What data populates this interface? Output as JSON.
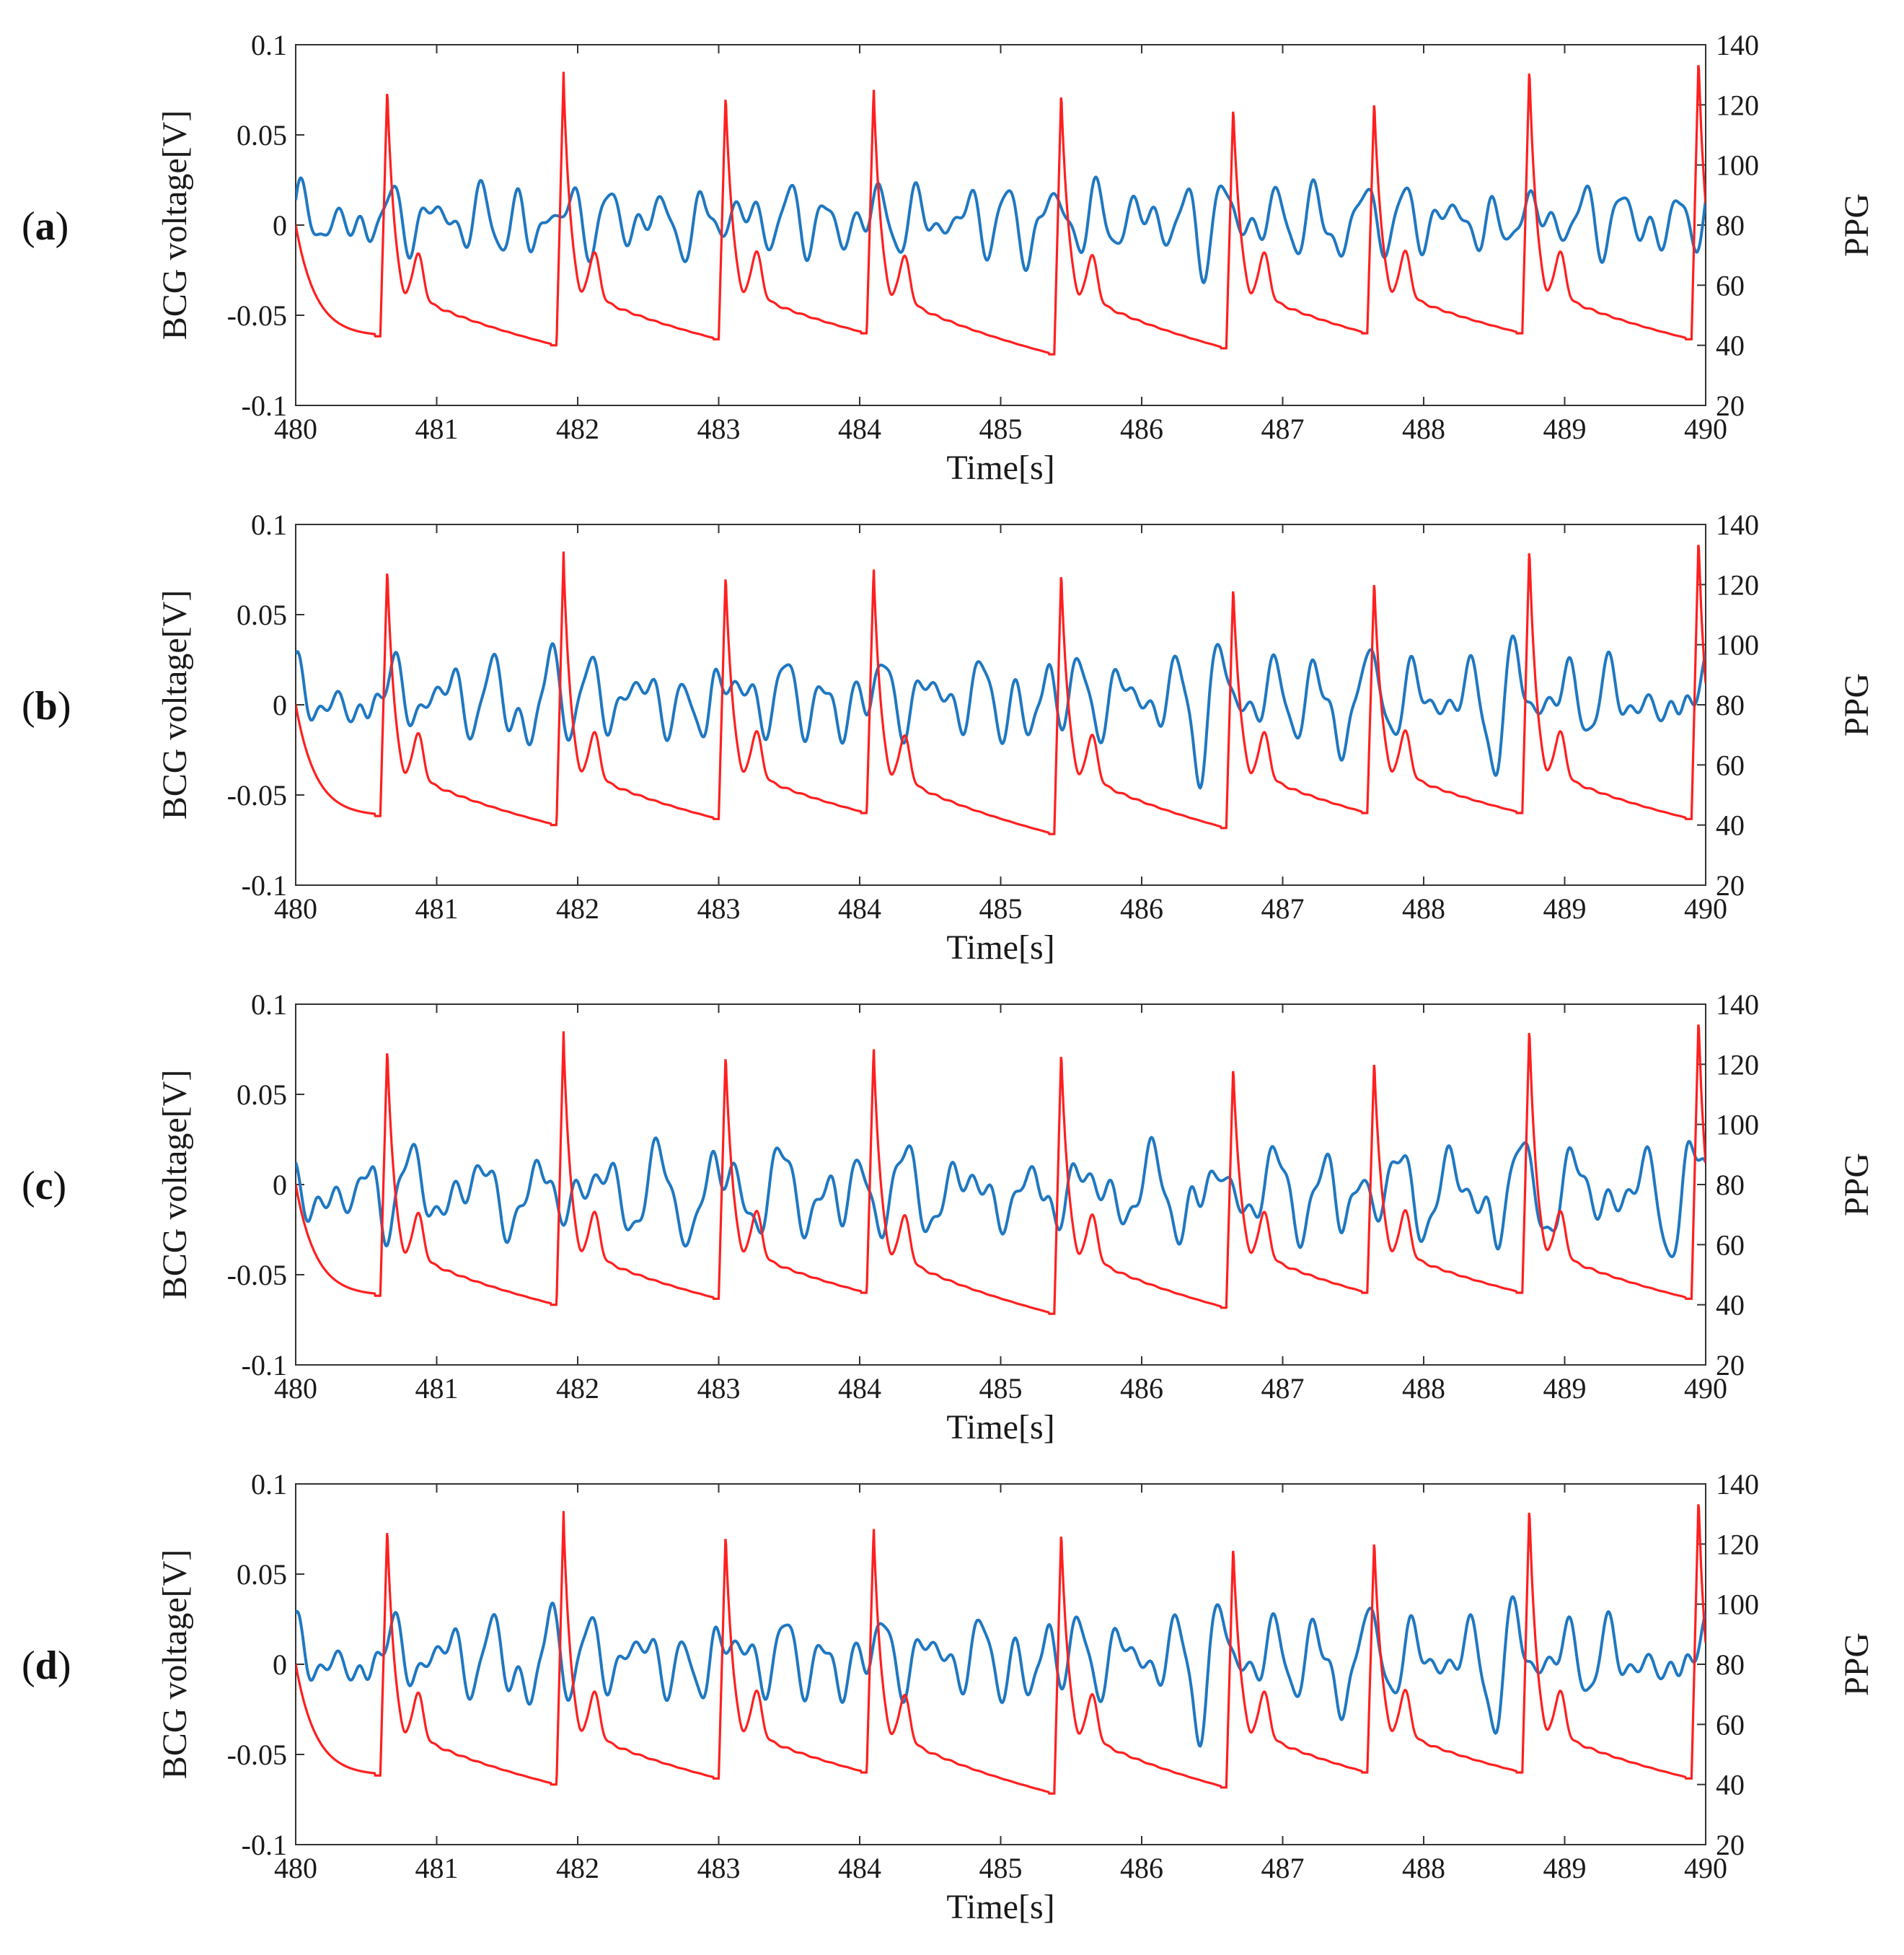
{
  "chart_data": [
    {
      "panel_label_open": "(",
      "panel_letter": "a",
      "panel_label_close": ")",
      "type": "line",
      "xlabel": "Time[s]",
      "ylabel_left": "BCG voltage[V]",
      "ylabel_right": "PPG",
      "xlim": [
        480,
        490
      ],
      "ylim_left": [
        -0.1,
        0.1
      ],
      "ylim_right": [
        20,
        140
      ],
      "x_ticks": [
        "480",
        "481",
        "482",
        "483",
        "484",
        "485",
        "486",
        "487",
        "488",
        "489",
        "490"
      ],
      "y_left_ticks": [
        "0.1",
        "0.05",
        "0",
        "-0.05",
        "-0.1"
      ],
      "y_right_ticks": [
        "140",
        "120",
        "100",
        "80",
        "60",
        "40",
        "20"
      ],
      "grid": false,
      "bcg": {
        "amp": 0.021,
        "beat_amp": 0.006,
        "offset": 0.003,
        "f1": 3.2,
        "f2": 4.6,
        "phase": 0.4
      },
      "series_colors": {
        "bcg": "#1f78c1",
        "ppg": "#ff1f1f"
      }
    },
    {
      "panel_label_open": "(",
      "panel_letter": "b",
      "panel_label_close": ")",
      "type": "line",
      "xlabel": "Time[s]",
      "ylabel_left": "BCG voltage[V]",
      "ylabel_right": "PPG",
      "xlim": [
        480,
        490
      ],
      "ylim_left": [
        -0.1,
        0.1
      ],
      "ylim_right": [
        20,
        140
      ],
      "x_ticks": [
        "480",
        "481",
        "482",
        "483",
        "484",
        "485",
        "486",
        "487",
        "488",
        "489",
        "490"
      ],
      "y_left_ticks": [
        "0.1",
        "0.05",
        "0",
        "-0.05",
        "-0.1"
      ],
      "y_right_ticks": [
        "140",
        "120",
        "100",
        "80",
        "60",
        "40",
        "20"
      ],
      "grid": false,
      "bcg": {
        "amp": 0.024,
        "beat_amp": 0.012,
        "offset": 0.004,
        "f1": 2.9,
        "f2": 4.3,
        "phase": 1.1
      },
      "series_colors": {
        "bcg": "#1f78c1",
        "ppg": "#ff1f1f"
      }
    },
    {
      "panel_label_open": "(",
      "panel_letter": "c",
      "panel_label_close": ")",
      "type": "line",
      "xlabel": "Time[s]",
      "ylabel_left": "BCG voltage[V]",
      "ylabel_right": "PPG",
      "xlim": [
        480,
        490
      ],
      "ylim_left": [
        -0.1,
        0.1
      ],
      "ylim_right": [
        20,
        140
      ],
      "x_ticks": [
        "480",
        "481",
        "482",
        "483",
        "484",
        "485",
        "486",
        "487",
        "488",
        "489",
        "490"
      ],
      "y_left_ticks": [
        "0.1",
        "0.05",
        "0",
        "-0.05",
        "-0.1"
      ],
      "y_right_ticks": [
        "140",
        "120",
        "100",
        "80",
        "60",
        "40",
        "20"
      ],
      "grid": false,
      "bcg": {
        "amp": 0.027,
        "beat_amp": 0.008,
        "offset": -0.004,
        "f1": 2.3,
        "f2": 3.4,
        "phase": 2.0
      },
      "series_colors": {
        "bcg": "#1f78c1",
        "ppg": "#ff1f1f"
      }
    },
    {
      "panel_label_open": "(",
      "panel_letter": "d",
      "panel_label_close": ")",
      "type": "line",
      "xlabel": "Time[s]",
      "ylabel_left": "BCG voltage[V]",
      "ylabel_right": "PPG",
      "xlim": [
        480,
        490
      ],
      "ylim_left": [
        -0.1,
        0.1
      ],
      "ylim_right": [
        20,
        140
      ],
      "x_ticks": [
        "480",
        "481",
        "482",
        "483",
        "484",
        "485",
        "486",
        "487",
        "488",
        "489",
        "490"
      ],
      "y_left_ticks": [
        "0.1",
        "0.05",
        "0",
        "-0.05",
        "-0.1"
      ],
      "y_right_ticks": [
        "140",
        "120",
        "100",
        "80",
        "60",
        "40",
        "20"
      ],
      "grid": false,
      "bcg": {
        "amp": 0.024,
        "beat_amp": 0.012,
        "offset": 0.004,
        "f1": 2.9,
        "f2": 4.3,
        "phase": 1.15
      },
      "series_colors": {
        "bcg": "#1f78c1",
        "ppg": "#ff1f1f"
      }
    }
  ],
  "ppg_series": {
    "beat_times": [
      480.6,
      481.85,
      483.0,
      484.05,
      485.38,
      486.6,
      487.6,
      488.7,
      489.9
    ],
    "peak_values": [
      127,
      131,
      125,
      127,
      126,
      121,
      123,
      134,
      137
    ],
    "trough_values": [
      43,
      40,
      42,
      44,
      37,
      39,
      44,
      44,
      42
    ],
    "start_value": 80
  }
}
